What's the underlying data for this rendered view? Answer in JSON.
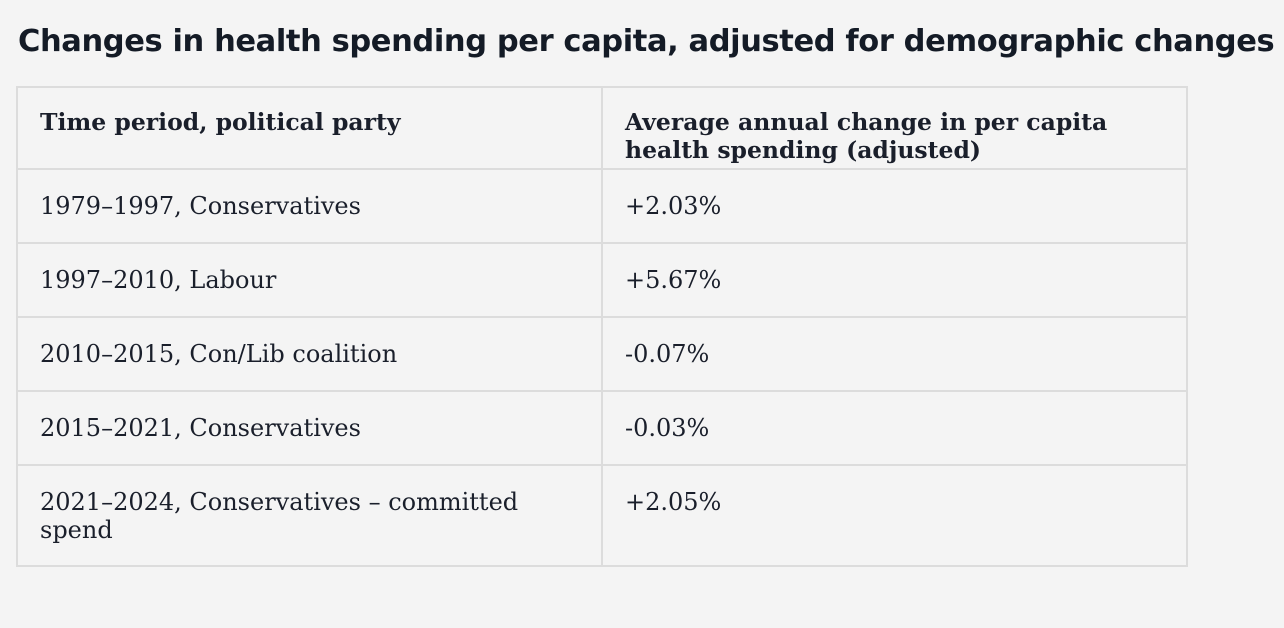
{
  "title": "Changes in health spending per capita, adjusted for demographic changes",
  "table": {
    "headers": [
      "Time period, political party",
      "Average annual change in per capita health spending (adjusted)"
    ],
    "rows": [
      {
        "period": "1979–1997, Conservatives",
        "change": "+2.03%"
      },
      {
        "period": "1997–2010, Labour",
        "change": "+5.67%"
      },
      {
        "period": "2010–2015, Con/Lib coalition",
        "change": "-0.07%"
      },
      {
        "period": "2015–2021, Conservatives",
        "change": "-0.03%"
      },
      {
        "period": "2021–2024, Conservatives – committed spend",
        "change": "+2.05%"
      }
    ]
  }
}
